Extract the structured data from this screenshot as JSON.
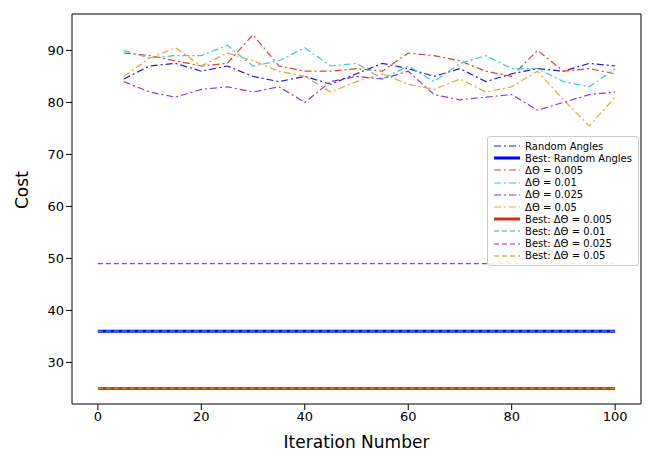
{
  "chart_data": {
    "type": "line",
    "x_label": "Iteration Number",
    "y_label": "Cost",
    "xlim": [
      -5,
      105
    ],
    "xticks": [
      0,
      20,
      40,
      60,
      80,
      100
    ],
    "ylim": [
      22,
      97
    ],
    "yticks": [
      30,
      40,
      50,
      60,
      70,
      80,
      90
    ],
    "grid": false,
    "legend": "right",
    "x": [
      0,
      5,
      10,
      15,
      20,
      25,
      30,
      35,
      40,
      45,
      50,
      55,
      60,
      65,
      70,
      75,
      80,
      85,
      90,
      95,
      100
    ],
    "series": [
      {
        "name": "Random Angles",
        "color": "#1f1fe0",
        "line_style": "dashdot",
        "values": [
          null,
          84.5,
          87,
          87.5,
          86,
          87,
          85,
          84,
          85,
          83.5,
          85.5,
          87.5,
          86.5,
          85,
          86.5,
          84,
          85.5,
          86.5,
          86,
          87.5,
          87
        ]
      },
      {
        "name": "Best: Random Angles",
        "color": "#0000ff",
        "line_style": "solid",
        "values": [
          36,
          36,
          36,
          36,
          36,
          36,
          36,
          36,
          36,
          36,
          36,
          36,
          36,
          36,
          36,
          36,
          36,
          36,
          36,
          36,
          36
        ]
      },
      {
        "name": "ΔΘ = 0.005",
        "color": "#e0442e",
        "line_style": "dashdot",
        "values": [
          null,
          89.5,
          89,
          88,
          87,
          87.5,
          93,
          87,
          86,
          86,
          86.5,
          86,
          89.5,
          89,
          88,
          86,
          85,
          90,
          86,
          86.5,
          85.5
        ]
      },
      {
        "name": "ΔΘ = 0.01",
        "color": "#33cccc",
        "line_style": "dashdot",
        "values": [
          null,
          90,
          88.5,
          89,
          89,
          91,
          87,
          88,
          90.5,
          87,
          87.5,
          84.5,
          87,
          84,
          87.5,
          89,
          86.5,
          86.5,
          84,
          83,
          86.5
        ]
      },
      {
        "name": "ΔΘ = 0.025",
        "color": "#9933dd",
        "line_style": "dashdot",
        "values": [
          null,
          84,
          82,
          81,
          82.5,
          83,
          82,
          83,
          80,
          84,
          85,
          84.5,
          86,
          81.5,
          80.5,
          81,
          81.5,
          78.5,
          80,
          81.5,
          82
        ]
      },
      {
        "name": "ΔΘ = 0.05",
        "color": "#f0a030",
        "line_style": "dashdot",
        "values": [
          null,
          85,
          88.5,
          90.5,
          87,
          89.5,
          88,
          86,
          85,
          82,
          84,
          85.5,
          83.5,
          82.5,
          84.5,
          82,
          83,
          86,
          80.5,
          75.5,
          81
        ]
      },
      {
        "name": "Best: ΔΘ = 0.005",
        "color": "#d03020",
        "line_style": "solid",
        "values": [
          25,
          25,
          25,
          25,
          25,
          25,
          25,
          25,
          25,
          25,
          25,
          25,
          25,
          25,
          25,
          25,
          25,
          25,
          25,
          25,
          25
        ]
      },
      {
        "name": "Best: ΔΘ = 0.01",
        "color": "#20b0a0",
        "line_style": "dashed",
        "values": [
          36,
          36,
          36,
          36,
          36,
          36,
          36,
          36,
          36,
          36,
          36,
          36,
          36,
          36,
          36,
          36,
          36,
          36,
          36,
          36,
          36
        ]
      },
      {
        "name": "Best: ΔΘ = 0.025",
        "color": "#9933ee",
        "line_style": "dashed",
        "values": [
          49,
          49,
          49,
          49,
          49,
          49,
          49,
          49,
          49,
          49,
          49,
          49,
          49,
          49,
          49,
          49,
          49,
          49,
          49,
          49,
          49
        ]
      },
      {
        "name": "Best: ΔΘ = 0.05",
        "color": "#c89020",
        "line_style": "dashed",
        "values": [
          25,
          25,
          25,
          25,
          25,
          25,
          25,
          25,
          25,
          25,
          25,
          25,
          25,
          25,
          25,
          25,
          25,
          25,
          25,
          25,
          25
        ]
      }
    ]
  }
}
